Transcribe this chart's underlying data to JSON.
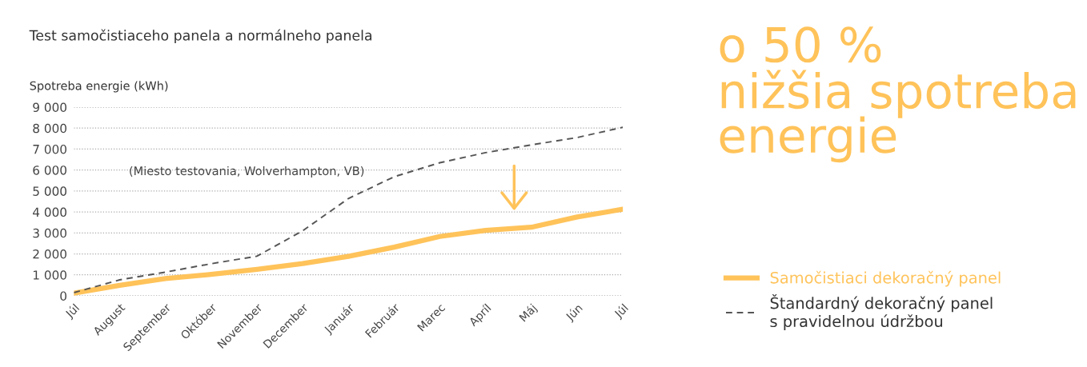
{
  "chart_data": {
    "type": "line",
    "title": "Test samočistiaceho panela a normálneho panela",
    "ylabel": "Spotreba energie (kWh)",
    "categories": [
      "Júl",
      "August",
      "September",
      "Október",
      "November",
      "December",
      "Január",
      "Február",
      "Marec",
      "Apríl",
      "Máj",
      "Jún",
      "Júl"
    ],
    "ylim": [
      0,
      9000
    ],
    "yticks": [
      0,
      {
        "value": 1000,
        "label": "1 000"
      },
      {
        "value": 2000,
        "label": "2 000"
      },
      {
        "value": 3000,
        "label": "3 000"
      },
      {
        "value": 4000,
        "label": "4 000"
      },
      {
        "value": 5000,
        "label": "5 000"
      },
      {
        "value": 6000,
        "label": "6 000"
      },
      {
        "value": 7000,
        "label": "7 000"
      },
      {
        "value": 8000,
        "label": "8 000"
      },
      {
        "value": 9000,
        "label": "9 000"
      }
    ],
    "series": [
      {
        "name": "Samočistiaci dekoračný panel",
        "color": "#ffc35a",
        "line_style": "solid",
        "values": [
          130,
          500,
          820,
          1020,
          1260,
          1540,
          1880,
          2320,
          2830,
          3120,
          3270,
          3760,
          4130
        ]
      },
      {
        "name": "Štandardný dekoračný panel\ns pravidelnou údržbou",
        "color": "#555555",
        "line_style": "dashed",
        "values": [
          150,
          760,
          1130,
          1530,
          1890,
          3100,
          4640,
          5680,
          6350,
          6830,
          7200,
          7550,
          8040
        ]
      }
    ],
    "annotations": [
      "(Miesto testovania, Wolverhampton, VB)",
      "o 50 %\nnižšia spotreba\nenergie"
    ],
    "grid": "y",
    "legend": "right",
    "marker": "none"
  }
}
